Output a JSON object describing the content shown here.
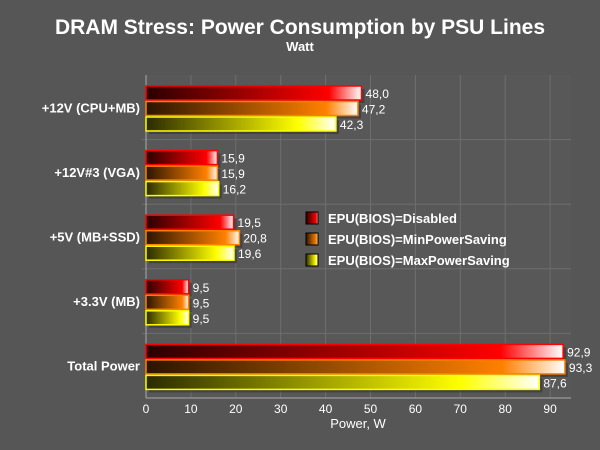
{
  "chart_data": {
    "type": "bar",
    "orientation": "horizontal",
    "title": "DRAM Stress: Power Consumption by PSU Lines",
    "subtitle": "Watt",
    "xlabel": "Power, W",
    "ylabel": "",
    "xlim": [
      0,
      95
    ],
    "xticks": [
      0,
      10,
      20,
      30,
      40,
      50,
      60,
      70,
      80,
      90
    ],
    "grid": true,
    "legend_position": "center-right",
    "categories": [
      "+12V (CPU+MB)",
      "+12V#3 (VGA)",
      "+5V (MB+SSD)",
      "+3.3V (MB)",
      "Total Power"
    ],
    "series": [
      {
        "name": "EPU(BIOS)=Disabled",
        "color": "#ff0000",
        "values": [
          48.0,
          15.9,
          19.5,
          9.5,
          92.9
        ],
        "labels": [
          "48,0",
          "15,9",
          "19,5",
          "9,5",
          "92,9"
        ]
      },
      {
        "name": "EPU(BIOS)=MinPowerSaving",
        "color": "#ff8000",
        "values": [
          47.2,
          15.9,
          20.8,
          9.5,
          93.3
        ],
        "labels": [
          "47,2",
          "15,9",
          "20,8",
          "9,5",
          "93,3"
        ]
      },
      {
        "name": "EPU(BIOS)=MaxPowerSaving",
        "color": "#ffff00",
        "values": [
          42.3,
          16.2,
          19.6,
          9.5,
          87.6
        ],
        "labels": [
          "42,3",
          "16,2",
          "19,6",
          "9,5",
          "87,6"
        ]
      }
    ]
  }
}
